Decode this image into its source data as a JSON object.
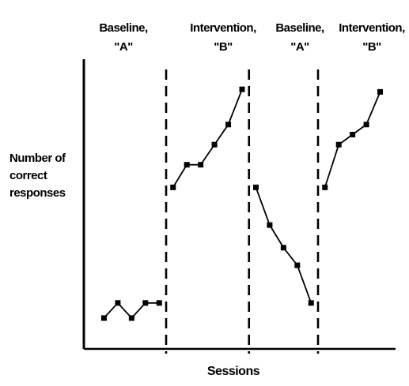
{
  "chart_data": {
    "type": "line",
    "title": "",
    "xlabel": "Sessions",
    "ylabel_lines": [
      "Number of",
      "correct",
      "responses"
    ],
    "phases": [
      {
        "line1": "Baseline,",
        "line2": "\"A\""
      },
      {
        "line1": "Intervention,",
        "line2": "\"B\""
      },
      {
        "line1": "Baseline,",
        "line2": "\"A\""
      },
      {
        "line1": "Intervention,",
        "line2": "\"B\""
      }
    ],
    "x_domain": [
      0,
      21
    ],
    "y_domain": [
      0,
      10
    ],
    "phase_change_x": [
      5.5,
      11.5,
      16.5
    ],
    "series": [
      {
        "phase": 0,
        "points": [
          [
            1,
            0.6
          ],
          [
            2,
            1.2
          ],
          [
            3,
            0.6
          ],
          [
            4,
            1.2
          ],
          [
            5,
            1.2
          ]
        ]
      },
      {
        "phase": 1,
        "points": [
          [
            6,
            5.8
          ],
          [
            7,
            6.7
          ],
          [
            8,
            6.7
          ],
          [
            9,
            7.5
          ],
          [
            10,
            8.3
          ],
          [
            11,
            9.7
          ]
        ]
      },
      {
        "phase": 2,
        "points": [
          [
            12,
            5.8
          ],
          [
            13,
            4.3
          ],
          [
            14,
            3.4
          ],
          [
            15,
            2.7
          ],
          [
            16,
            1.2
          ]
        ]
      },
      {
        "phase": 3,
        "points": [
          [
            17,
            5.8
          ],
          [
            18,
            7.5
          ],
          [
            19,
            7.9
          ],
          [
            20,
            8.3
          ],
          [
            21,
            9.6
          ]
        ]
      }
    ],
    "grid": false,
    "legend": "none",
    "line_color": "#000000",
    "marker": "filled-square"
  }
}
